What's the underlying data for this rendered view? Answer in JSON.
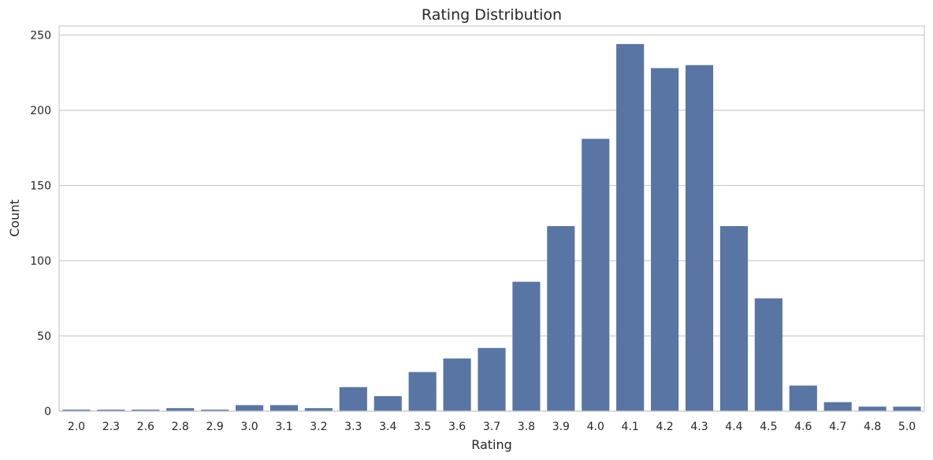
{
  "chart_data": {
    "type": "bar",
    "title": "Rating Distribution",
    "xlabel": "Rating",
    "ylabel": "Count",
    "categories": [
      "2.0",
      "2.3",
      "2.6",
      "2.8",
      "2.9",
      "3.0",
      "3.1",
      "3.2",
      "3.3",
      "3.4",
      "3.5",
      "3.6",
      "3.7",
      "3.8",
      "3.9",
      "4.0",
      "4.1",
      "4.2",
      "4.3",
      "4.4",
      "4.5",
      "4.6",
      "4.7",
      "4.8",
      "5.0"
    ],
    "values": [
      1,
      1,
      1,
      2,
      1,
      4,
      4,
      2,
      16,
      10,
      26,
      35,
      42,
      86,
      123,
      181,
      244,
      228,
      230,
      123,
      75,
      17,
      6,
      3,
      3
    ],
    "yticks": [
      0,
      50,
      100,
      150,
      200,
      250
    ],
    "ylim": [
      0,
      256
    ],
    "grid": true,
    "bar_color": "#5875a4"
  }
}
